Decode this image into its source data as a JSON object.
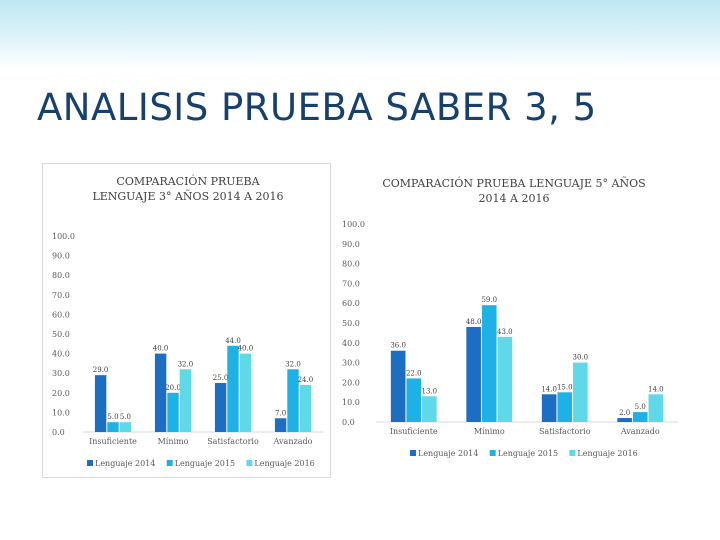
{
  "slide": {
    "title": "ANALISIS PRUEBA SABER 3, 5"
  },
  "colors": {
    "header_top": "#bfe8f3",
    "title": "#17406d",
    "series": [
      "#1c6ec2",
      "#1eb1e6",
      "#5fd8e8"
    ]
  },
  "chart_data": [
    {
      "type": "bar",
      "title": "COMPARACIÓN PRUEBA LENGUAJE 3° AÑOS 2014 A 2016",
      "categories": [
        "Insuficiente",
        "Mínimo",
        "Satisfactorio",
        "Avanzado"
      ],
      "series": [
        {
          "name": "Lenguaje 2014",
          "values": [
            29.0,
            40.0,
            25.0,
            7.0
          ]
        },
        {
          "name": "Lenguaje 2015",
          "values": [
            5.0,
            20.0,
            44.0,
            32.0
          ]
        },
        {
          "name": "Lenguaje 2016",
          "values": [
            5.0,
            32.0,
            40.0,
            24.0
          ]
        }
      ],
      "ylim": [
        0,
        100
      ],
      "yticks": [
        "0.0",
        "10.0",
        "20.0",
        "30.0",
        "40.0",
        "50.0",
        "60.0",
        "70.0",
        "80.0",
        "90.0",
        "100.0"
      ],
      "data_labels": [
        [
          "29.0",
          "40.0",
          "25.0",
          "7.0"
        ],
        [
          "5.0",
          "20.0",
          "44.0",
          "32.0"
        ],
        [
          "5.0",
          "32.0",
          "40.0",
          "24.0"
        ]
      ],
      "legend": "bottom",
      "grid": false
    },
    {
      "type": "bar",
      "title": "COMPARACIÓN PRUEBA LENGUAJE 5° AÑOS 2014 A 2016",
      "categories": [
        "Insuficiente",
        "Mínimo",
        "Satisfactorio",
        "Avanzado"
      ],
      "series": [
        {
          "name": "Lenguaje 2014",
          "values": [
            36.0,
            48.0,
            14.0,
            2.0
          ]
        },
        {
          "name": "Lenguaje 2015",
          "values": [
            22.0,
            59.0,
            15.0,
            5.0
          ]
        },
        {
          "name": "Lenguaje 2016",
          "values": [
            13.0,
            43.0,
            30.0,
            14.0
          ]
        }
      ],
      "ylim": [
        0,
        100
      ],
      "yticks": [
        "0.0",
        "10.0",
        "20.0",
        "30.0",
        "40.0",
        "50.0",
        "60.0",
        "70.0",
        "80.0",
        "90.0",
        "100.0"
      ],
      "data_labels": [
        [
          "36.0",
          "48.0",
          "14.0",
          "2.0"
        ],
        [
          "22.0",
          "59.0",
          "15.0",
          "5.0"
        ],
        [
          "13.0",
          "43.0",
          "30.0",
          "14.0"
        ]
      ],
      "legend": "bottom",
      "grid": false
    }
  ]
}
